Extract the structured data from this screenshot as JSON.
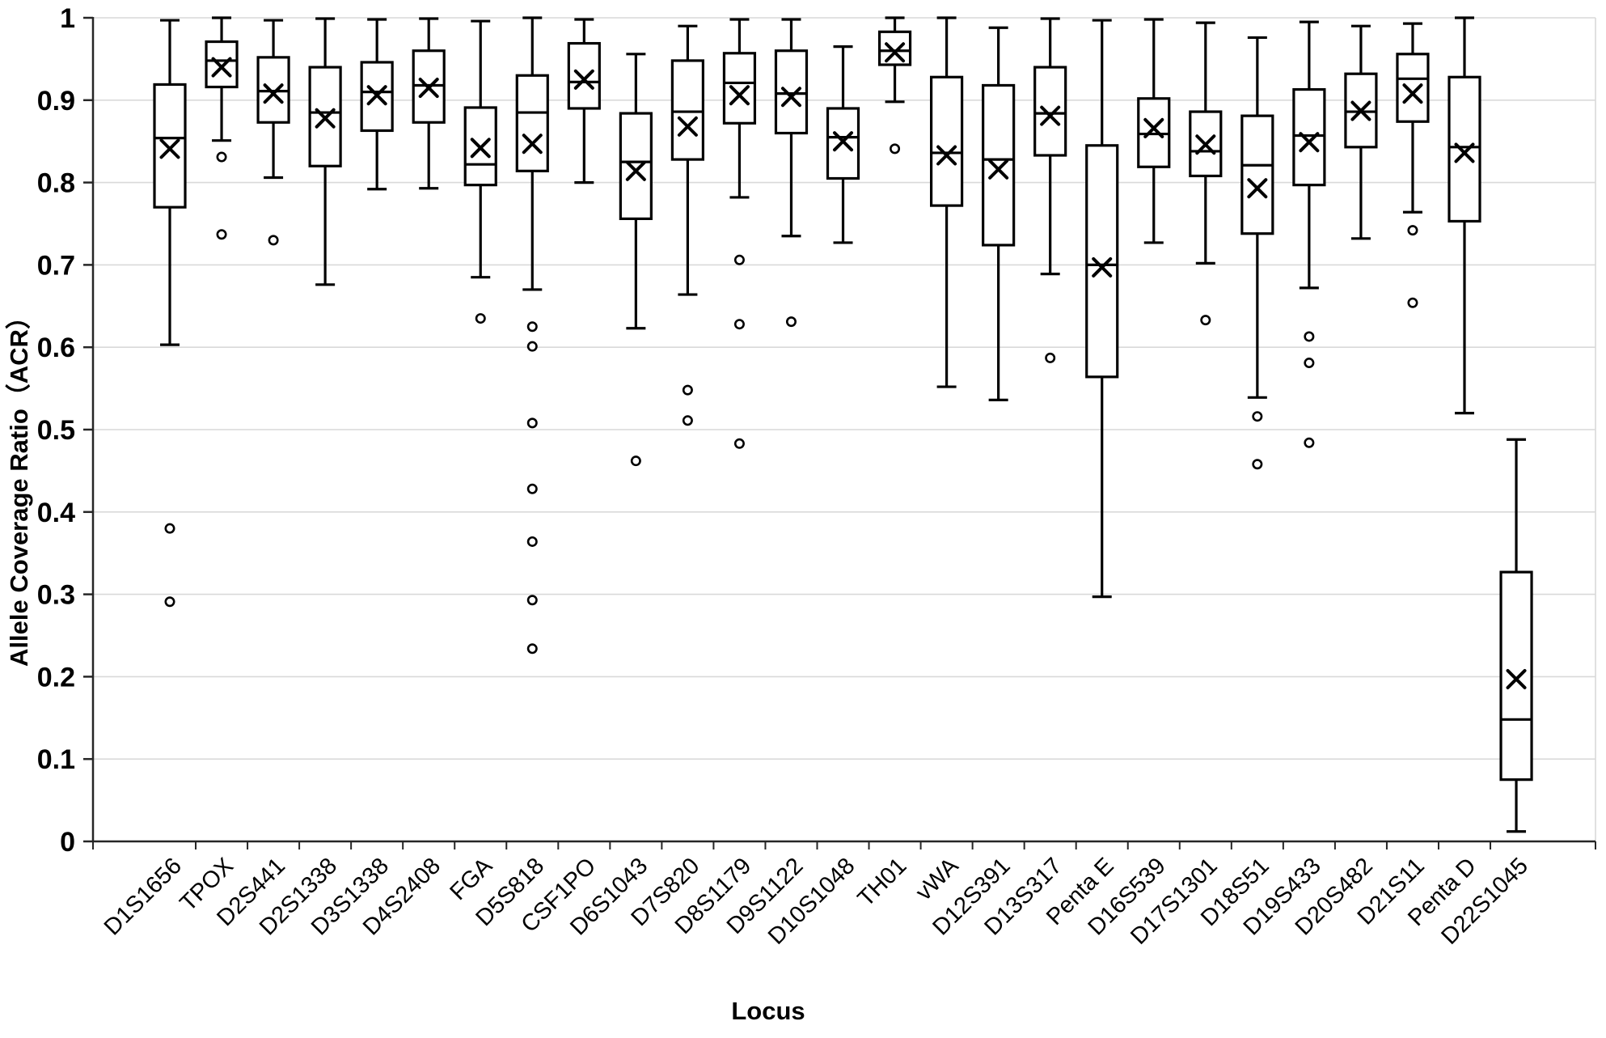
{
  "chart_data": {
    "type": "box",
    "title": "",
    "xlabel": "Locus",
    "ylabel": "Allele Coverage Ratio（ACR）",
    "ylim": [
      0,
      1
    ],
    "ytick_labels": [
      "0",
      "0.1",
      "0.2",
      "0.3",
      "0.4",
      "0.5",
      "0.6",
      "0.7",
      "0.8",
      "0.9",
      "1"
    ],
    "grid": "horizontal-major",
    "legend": "none",
    "style": {
      "box_fill": "#ffffff",
      "box_stroke": "#000000",
      "grid_color": "#d9d9d9",
      "axis_color": "#262626",
      "mean_marker": "x-cross",
      "outlier_marker": "open-circle"
    },
    "categories": [
      "D1S1656",
      "TPOX",
      "D2S441",
      "D2S1338",
      "D3S1338",
      "D4S2408",
      "FGA",
      "D5S818",
      "CSF1PO",
      "D6S1043",
      "D7S820",
      "D8S1179",
      "D9S1122",
      "D10S1048",
      "TH01",
      "vWA",
      "D12S391",
      "D13S317",
      "Penta E",
      "D16S539",
      "D17S1301",
      "D18S51",
      "D19S433",
      "D20S482",
      "D21S11",
      "Penta D",
      "D22S1045"
    ],
    "series": [
      {
        "name": "D1S1656",
        "whisker_low": 0.603,
        "q1": 0.77,
        "median": 0.854,
        "q3": 0.919,
        "whisker_high": 0.997,
        "mean": 0.841,
        "outliers": [
          0.38,
          0.291
        ]
      },
      {
        "name": "TPOX",
        "whisker_low": 0.851,
        "q1": 0.916,
        "median": 0.948,
        "q3": 0.971,
        "whisker_high": 1.0,
        "mean": 0.94,
        "outliers": [
          0.831,
          0.737
        ]
      },
      {
        "name": "D2S441",
        "whisker_low": 0.806,
        "q1": 0.873,
        "median": 0.911,
        "q3": 0.952,
        "whisker_high": 0.997,
        "mean": 0.908,
        "outliers": [
          0.73
        ]
      },
      {
        "name": "D2S1338",
        "whisker_low": 0.676,
        "q1": 0.82,
        "median": 0.885,
        "q3": 0.94,
        "whisker_high": 0.999,
        "mean": 0.878,
        "outliers": []
      },
      {
        "name": "D3S1338",
        "whisker_low": 0.792,
        "q1": 0.863,
        "median": 0.91,
        "q3": 0.946,
        "whisker_high": 0.998,
        "mean": 0.906,
        "outliers": []
      },
      {
        "name": "D4S2408",
        "whisker_low": 0.793,
        "q1": 0.873,
        "median": 0.918,
        "q3": 0.96,
        "whisker_high": 0.999,
        "mean": 0.915,
        "outliers": []
      },
      {
        "name": "FGA",
        "whisker_low": 0.685,
        "q1": 0.797,
        "median": 0.822,
        "q3": 0.891,
        "whisker_high": 0.996,
        "mean": 0.842,
        "outliers": [
          0.635
        ]
      },
      {
        "name": "D5S818",
        "whisker_low": 0.67,
        "q1": 0.814,
        "median": 0.885,
        "q3": 0.93,
        "whisker_high": 1.0,
        "mean": 0.847,
        "outliers": [
          0.625,
          0.601,
          0.508,
          0.428,
          0.364,
          0.293,
          0.234
        ]
      },
      {
        "name": "CSF1PO",
        "whisker_low": 0.8,
        "q1": 0.89,
        "median": 0.922,
        "q3": 0.969,
        "whisker_high": 0.998,
        "mean": 0.925,
        "outliers": []
      },
      {
        "name": "D6S1043",
        "whisker_low": 0.623,
        "q1": 0.756,
        "median": 0.825,
        "q3": 0.884,
        "whisker_high": 0.956,
        "mean": 0.814,
        "outliers": [
          0.462
        ]
      },
      {
        "name": "D7S820",
        "whisker_low": 0.664,
        "q1": 0.828,
        "median": 0.886,
        "q3": 0.948,
        "whisker_high": 0.99,
        "mean": 0.868,
        "outliers": [
          0.548,
          0.511
        ]
      },
      {
        "name": "D8S1179",
        "whisker_low": 0.782,
        "q1": 0.872,
        "median": 0.921,
        "q3": 0.957,
        "whisker_high": 0.998,
        "mean": 0.906,
        "outliers": [
          0.706,
          0.628,
          0.483
        ]
      },
      {
        "name": "D9S1122",
        "whisker_low": 0.735,
        "q1": 0.86,
        "median": 0.908,
        "q3": 0.96,
        "whisker_high": 0.998,
        "mean": 0.904,
        "outliers": [
          0.631
        ]
      },
      {
        "name": "D10S1048",
        "whisker_low": 0.727,
        "q1": 0.805,
        "median": 0.855,
        "q3": 0.89,
        "whisker_high": 0.965,
        "mean": 0.85,
        "outliers": []
      },
      {
        "name": "TH01",
        "whisker_low": 0.898,
        "q1": 0.943,
        "median": 0.96,
        "q3": 0.983,
        "whisker_high": 1.0,
        "mean": 0.958,
        "outliers": [
          0.841
        ]
      },
      {
        "name": "vWA",
        "whisker_low": 0.552,
        "q1": 0.772,
        "median": 0.836,
        "q3": 0.928,
        "whisker_high": 1.0,
        "mean": 0.833,
        "outliers": []
      },
      {
        "name": "D12S391",
        "whisker_low": 0.536,
        "q1": 0.724,
        "median": 0.828,
        "q3": 0.918,
        "whisker_high": 0.988,
        "mean": 0.816,
        "outliers": []
      },
      {
        "name": "D13S317",
        "whisker_low": 0.689,
        "q1": 0.833,
        "median": 0.884,
        "q3": 0.94,
        "whisker_high": 0.999,
        "mean": 0.881,
        "outliers": [
          0.587
        ]
      },
      {
        "name": "Penta E",
        "whisker_low": 0.297,
        "q1": 0.564,
        "median": 0.7,
        "q3": 0.845,
        "whisker_high": 0.997,
        "mean": 0.697,
        "outliers": []
      },
      {
        "name": "D16S539",
        "whisker_low": 0.727,
        "q1": 0.819,
        "median": 0.859,
        "q3": 0.902,
        "whisker_high": 0.998,
        "mean": 0.866,
        "outliers": []
      },
      {
        "name": "D17S1301",
        "whisker_low": 0.702,
        "q1": 0.808,
        "median": 0.838,
        "q3": 0.886,
        "whisker_high": 0.994,
        "mean": 0.846,
        "outliers": [
          0.633
        ]
      },
      {
        "name": "D18S51",
        "whisker_low": 0.539,
        "q1": 0.738,
        "median": 0.821,
        "q3": 0.881,
        "whisker_high": 0.976,
        "mean": 0.793,
        "outliers": [
          0.516,
          0.458
        ]
      },
      {
        "name": "D19S433",
        "whisker_low": 0.672,
        "q1": 0.797,
        "median": 0.857,
        "q3": 0.913,
        "whisker_high": 0.995,
        "mean": 0.849,
        "outliers": [
          0.613,
          0.581,
          0.484
        ]
      },
      {
        "name": "D20S482",
        "whisker_low": 0.732,
        "q1": 0.843,
        "median": 0.886,
        "q3": 0.932,
        "whisker_high": 0.99,
        "mean": 0.887,
        "outliers": []
      },
      {
        "name": "D21S11",
        "whisker_low": 0.764,
        "q1": 0.874,
        "median": 0.926,
        "q3": 0.956,
        "whisker_high": 0.993,
        "mean": 0.908,
        "outliers": [
          0.742,
          0.654
        ]
      },
      {
        "name": "Penta D",
        "whisker_low": 0.52,
        "q1": 0.753,
        "median": 0.843,
        "q3": 0.928,
        "whisker_high": 1.0,
        "mean": 0.836,
        "outliers": []
      },
      {
        "name": "D22S1045",
        "whisker_low": 0.012,
        "q1": 0.075,
        "median": 0.148,
        "q3": 0.327,
        "whisker_high": 0.488,
        "mean": 0.197,
        "outliers": []
      }
    ]
  }
}
